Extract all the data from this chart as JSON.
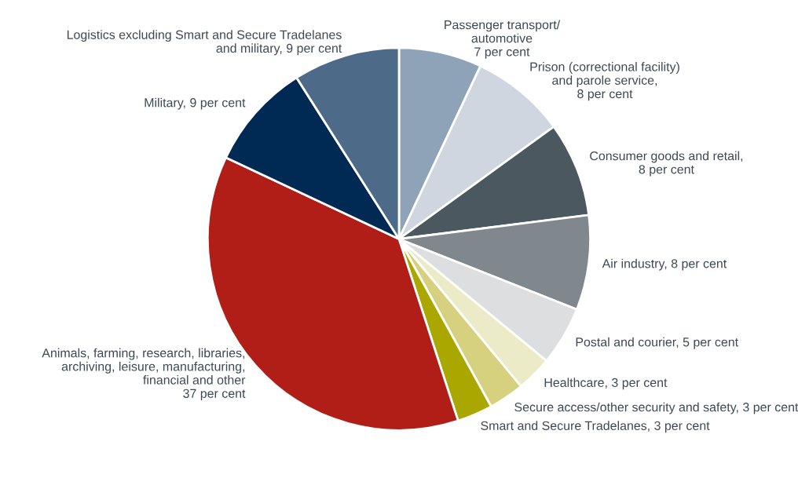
{
  "chart_data": {
    "type": "pie",
    "categories": [
      "Passenger transport/\nautomotive\n7 per cent",
      "Prison (correctional facility)\nand parole service,\n8 per cent",
      "Consumer goods and retail,\n8 per cent",
      "Air industry, 8 per cent",
      "Postal and courier, 5 per cent",
      "Healthcare, 3 per cent",
      "Secure access/other security and safety, 3 per cent",
      "Smart and Secure Tradelanes, 3 per cent",
      "Animals, farming, research, libraries,\narchiving, leisure, manufacturing,\nfinancial and other\n37 per cent",
      "Military, 9 per cent",
      "Logistics excluding Smart and Secure Tradelanes\nand military, 9 per cent"
    ],
    "values": [
      7,
      8,
      8,
      8,
      5,
      3,
      3,
      3,
      37,
      9,
      9
    ],
    "colors": [
      "#8fa3b8",
      "#cfd6df",
      "#4b5860",
      "#80888e",
      "#dcdee0",
      "#ecebc7",
      "#d6d17e",
      "#aaa800",
      "#b01e17",
      "#002a54",
      "#4e6a89"
    ],
    "legend": false
  }
}
